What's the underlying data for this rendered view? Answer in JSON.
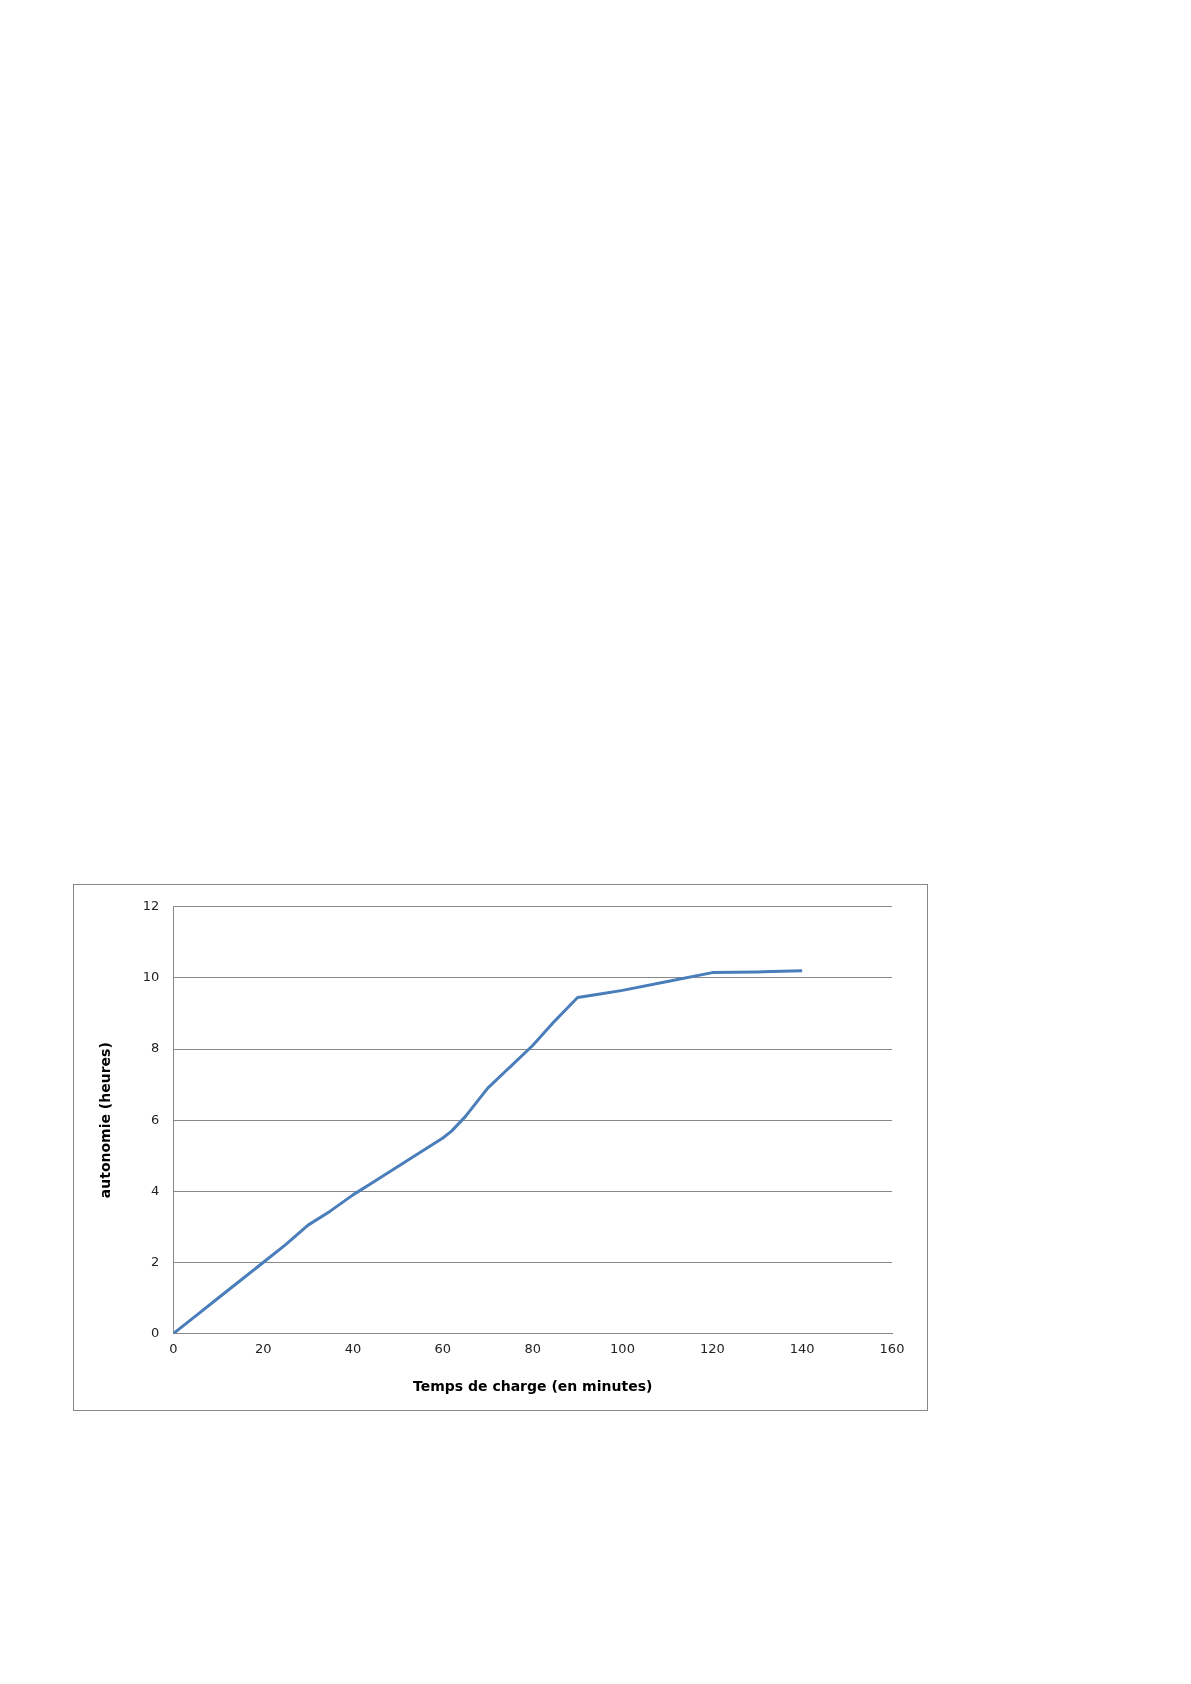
{
  "chart_data": {
    "type": "line",
    "xlabel": "Temps de charge (en minutes)",
    "ylabel": "autonomie (heures)",
    "x": [
      0,
      5,
      10,
      15,
      20,
      25,
      30,
      35,
      40,
      45,
      50,
      55,
      60,
      62,
      65,
      70,
      75,
      80,
      85,
      90,
      95,
      100,
      110,
      120,
      130,
      140
    ],
    "series": [
      {
        "color": "#4a7ebb",
        "values": [
          0,
          0.5,
          1,
          1.5,
          2,
          2.5,
          3.05,
          3.45,
          3.9,
          4.3,
          4.7,
          5.1,
          5.5,
          5.7,
          6.1,
          6.9,
          7.5,
          8.1,
          8.8,
          9.45,
          9.55,
          9.65,
          9.9,
          10.15,
          10.17,
          10.2
        ]
      }
    ],
    "xlim": [
      0,
      160
    ],
    "xticks": [
      0,
      20,
      40,
      60,
      80,
      100,
      120,
      140,
      160
    ],
    "ylim": [
      0,
      12
    ],
    "yticks": [
      0,
      2,
      4,
      6,
      8,
      10,
      12
    ],
    "grid": "y",
    "legend": false,
    "marker": "none",
    "line_style": "solid"
  }
}
